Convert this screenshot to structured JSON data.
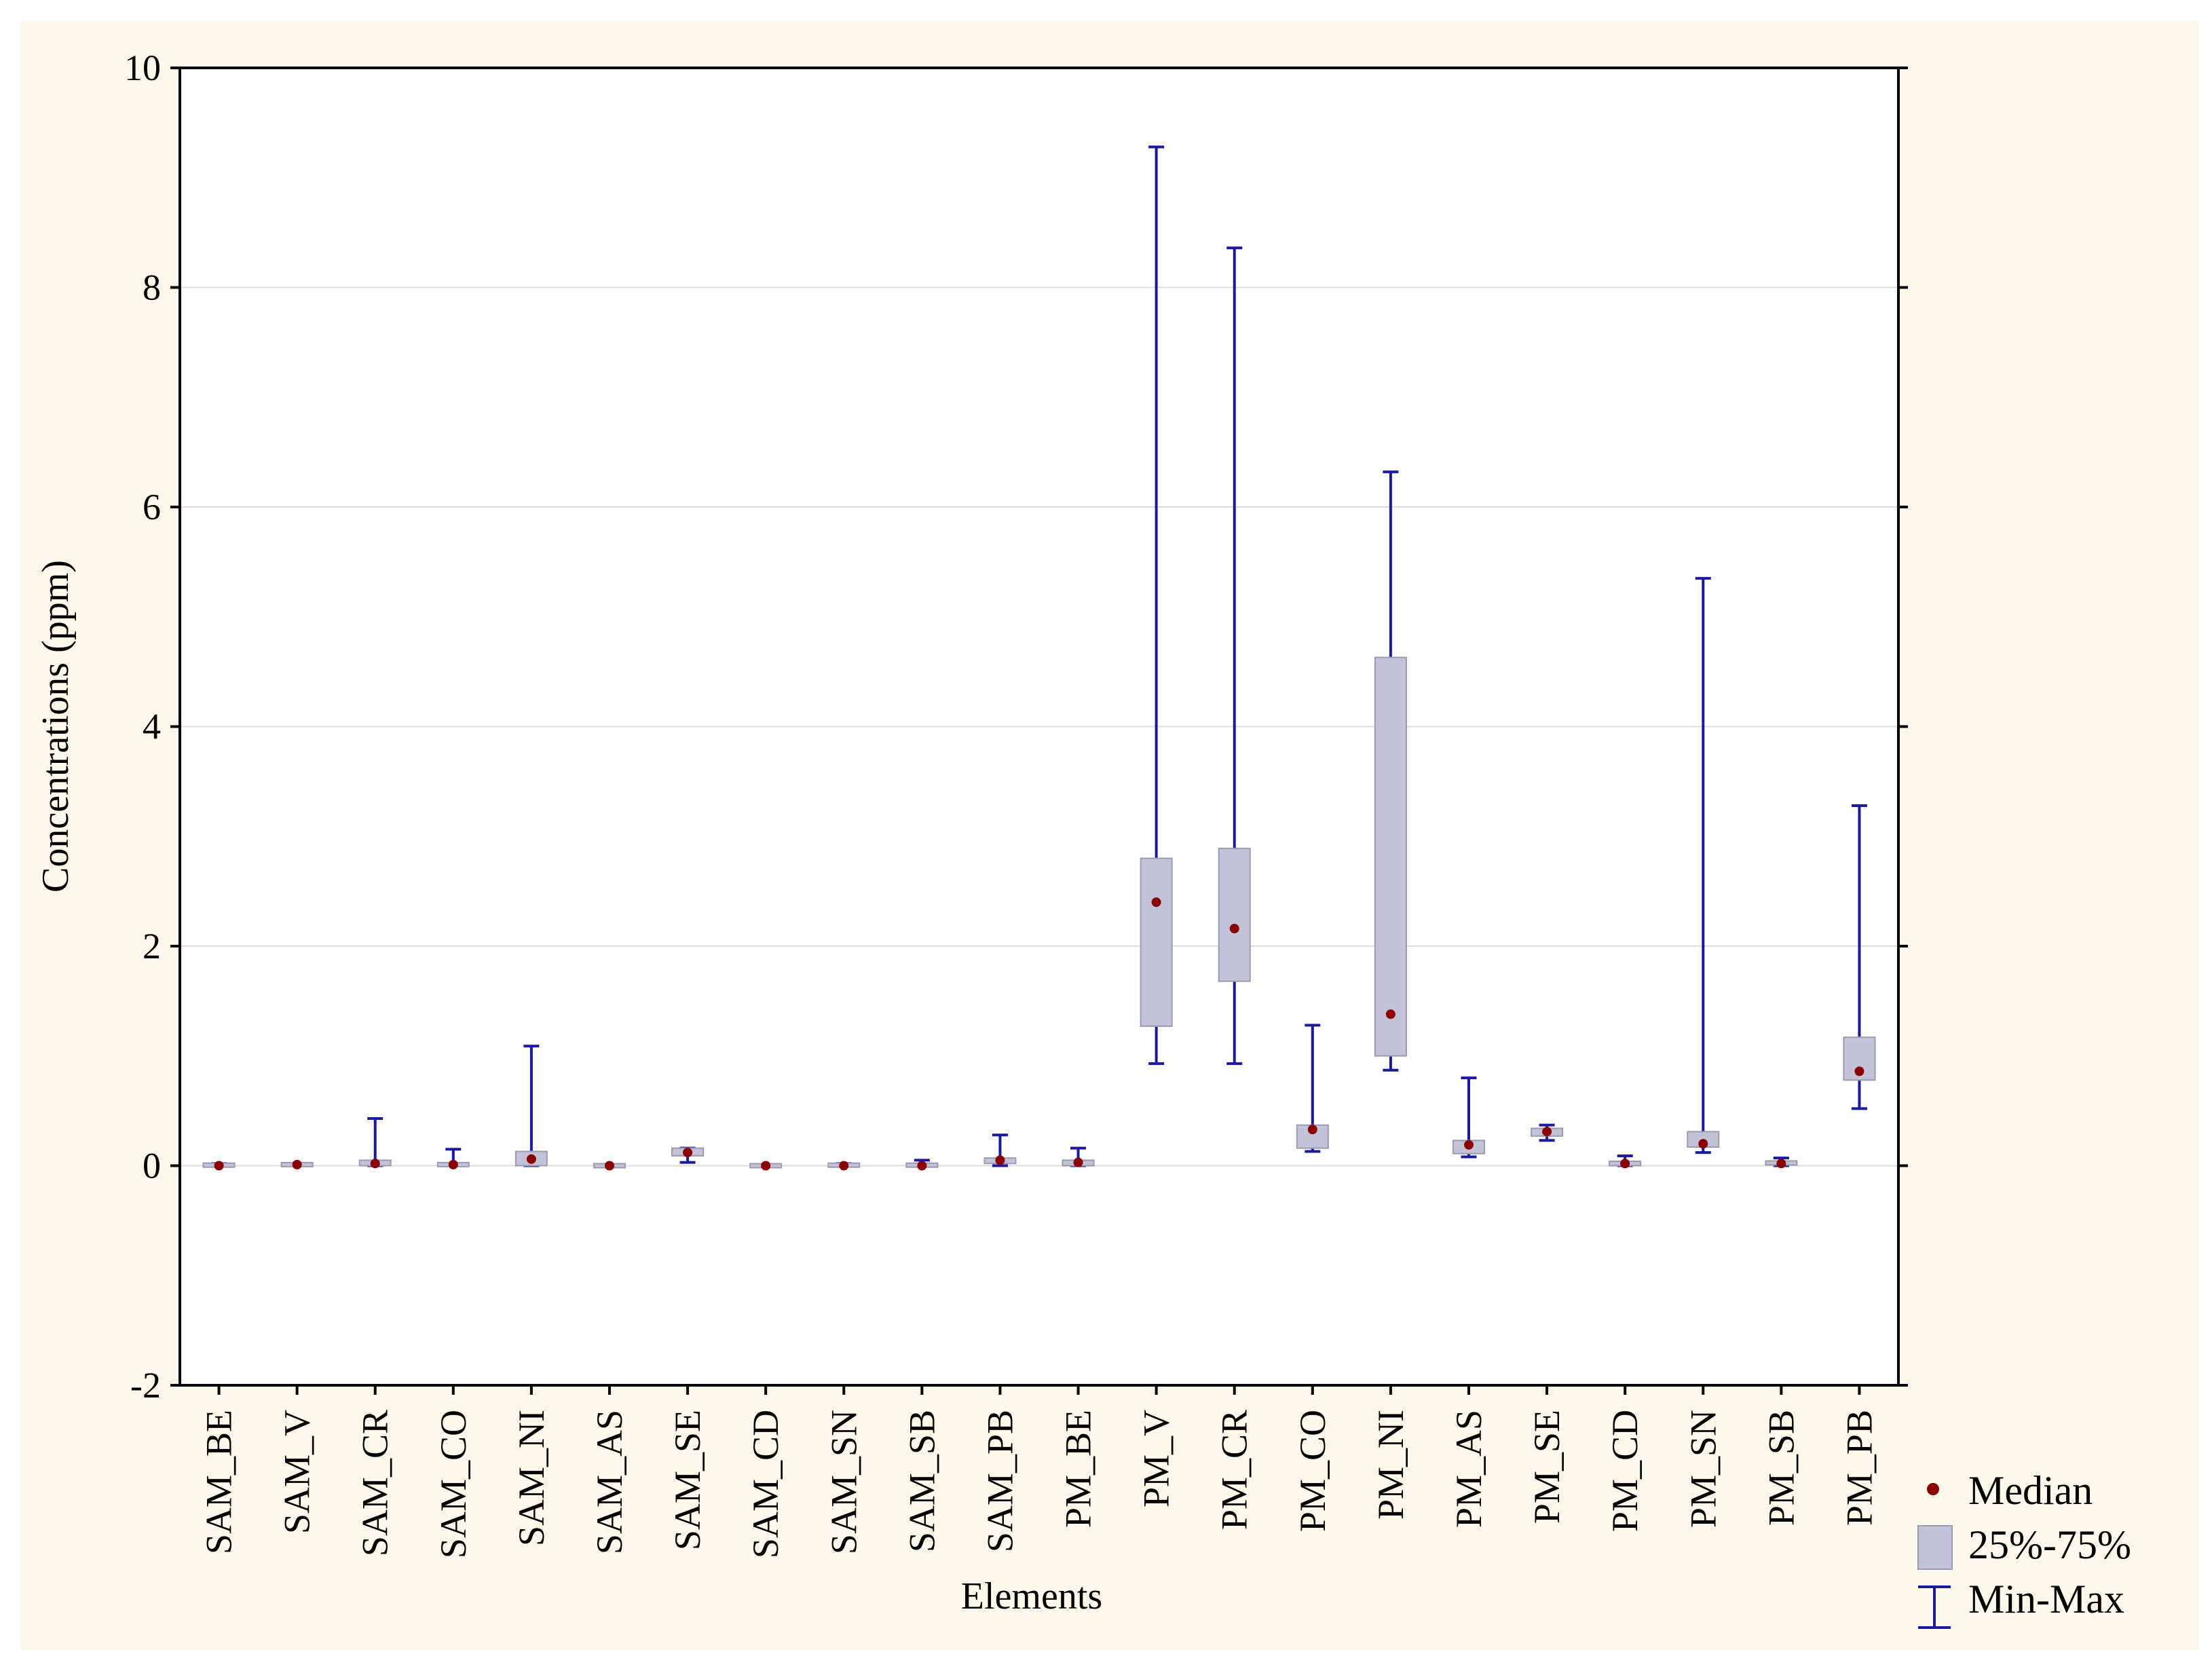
{
  "chart_data": {
    "type": "boxplot",
    "xlabel": "Elements",
    "ylabel": "Concentrations (ppm)",
    "ylim": [
      -2,
      10
    ],
    "yticks": [
      "-2",
      "0",
      "2",
      "4",
      "6",
      "8",
      "10"
    ],
    "grid": true,
    "legend_position": "bottom-right",
    "legend": {
      "median": "Median",
      "box": "25%-75%",
      "whisker": "Min-Max"
    },
    "colors": {
      "box_fill": "#c3c3d8",
      "box_edge": "#9a9ab4",
      "whisker": "#1a1aa0",
      "median": "#8b0000",
      "grid": "#dcdcdc",
      "background": "#fdf8ec"
    },
    "categories": [
      "SAM_BE",
      "SAM_V",
      "SAM_CR",
      "SAM_CO",
      "SAM_NI",
      "SAM_AS",
      "SAM_SE",
      "SAM_CD",
      "SAM_SN",
      "SAM_SB",
      "SAM_PB",
      "PM_BE",
      "PM_V",
      "PM_CR",
      "PM_CO",
      "PM_NI",
      "PM_AS",
      "PM_SE",
      "PM_CD",
      "PM_SN",
      "PM_SB",
      "PM_PB"
    ],
    "series": [
      {
        "min": 0.0,
        "q1": 0.0,
        "median": 0.0,
        "q3": 0.01,
        "max": 0.02
      },
      {
        "min": 0.0,
        "q1": 0.0,
        "median": 0.01,
        "q3": 0.02,
        "max": 0.02
      },
      {
        "min": 0.0,
        "q1": 0.0,
        "median": 0.02,
        "q3": 0.05,
        "max": 0.43
      },
      {
        "min": 0.0,
        "q1": 0.0,
        "median": 0.01,
        "q3": 0.02,
        "max": 0.15
      },
      {
        "min": 0.0,
        "q1": 0.0,
        "median": 0.06,
        "q3": 0.13,
        "max": 1.09
      },
      {
        "min": 0.0,
        "q1": 0.0,
        "median": 0.0,
        "q3": 0.0,
        "max": 0.01
      },
      {
        "min": 0.03,
        "q1": 0.09,
        "median": 0.12,
        "q3": 0.16,
        "max": 0.16
      },
      {
        "min": 0.0,
        "q1": 0.0,
        "median": 0.0,
        "q3": 0.0,
        "max": 0.01
      },
      {
        "min": 0.0,
        "q1": 0.0,
        "median": 0.0,
        "q3": 0.01,
        "max": 0.02
      },
      {
        "min": 0.0,
        "q1": 0.0,
        "median": 0.0,
        "q3": 0.01,
        "max": 0.05
      },
      {
        "min": 0.0,
        "q1": 0.02,
        "median": 0.05,
        "q3": 0.07,
        "max": 0.28
      },
      {
        "min": 0.0,
        "q1": 0.0,
        "median": 0.03,
        "q3": 0.05,
        "max": 0.16
      },
      {
        "min": 0.93,
        "q1": 1.27,
        "median": 2.4,
        "q3": 2.8,
        "max": 9.28
      },
      {
        "min": 0.93,
        "q1": 1.68,
        "median": 2.16,
        "q3": 2.89,
        "max": 8.36
      },
      {
        "min": 0.13,
        "q1": 0.16,
        "median": 0.33,
        "q3": 0.37,
        "max": 1.28
      },
      {
        "min": 0.87,
        "q1": 1.0,
        "median": 1.38,
        "q3": 4.63,
        "max": 6.32
      },
      {
        "min": 0.08,
        "q1": 0.11,
        "median": 0.19,
        "q3": 0.23,
        "max": 0.8
      },
      {
        "min": 0.23,
        "q1": 0.27,
        "median": 0.31,
        "q3": 0.34,
        "max": 0.37
      },
      {
        "min": 0.0,
        "q1": 0.0,
        "median": 0.02,
        "q3": 0.04,
        "max": 0.09
      },
      {
        "min": 0.12,
        "q1": 0.17,
        "median": 0.2,
        "q3": 0.31,
        "max": 5.35
      },
      {
        "min": 0.0,
        "q1": 0.01,
        "median": 0.02,
        "q3": 0.04,
        "max": 0.07
      },
      {
        "min": 0.52,
        "q1": 0.78,
        "median": 0.86,
        "q3": 1.17,
        "max": 3.28
      }
    ]
  }
}
